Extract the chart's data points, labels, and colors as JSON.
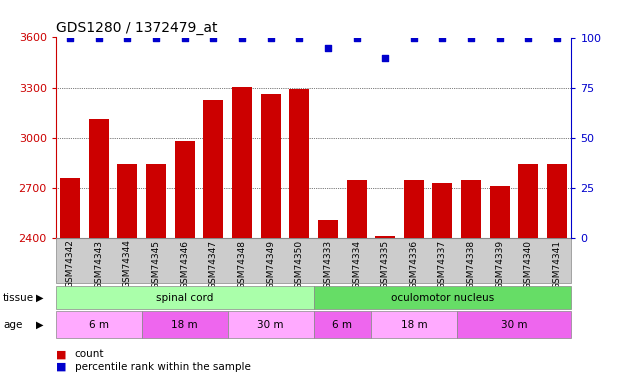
{
  "title": "GDS1280 / 1372479_at",
  "samples": [
    "GSM74342",
    "GSM74343",
    "GSM74344",
    "GSM74345",
    "GSM74346",
    "GSM74347",
    "GSM74348",
    "GSM74349",
    "GSM74350",
    "GSM74333",
    "GSM74334",
    "GSM74335",
    "GSM74336",
    "GSM74337",
    "GSM74338",
    "GSM74339",
    "GSM74340",
    "GSM74341"
  ],
  "counts": [
    2760,
    3110,
    2845,
    2845,
    2980,
    3225,
    3305,
    3265,
    3290,
    2510,
    2745,
    2415,
    2750,
    2730,
    2745,
    2710,
    2845,
    2845
  ],
  "percentiles": [
    100,
    100,
    100,
    100,
    100,
    100,
    100,
    100,
    100,
    95,
    100,
    90,
    100,
    100,
    100,
    100,
    100,
    100
  ],
  "ylim_left": [
    2400,
    3600
  ],
  "ylim_right": [
    0,
    100
  ],
  "yticks_left": [
    2400,
    2700,
    3000,
    3300,
    3600
  ],
  "yticks_right": [
    0,
    25,
    50,
    75,
    100
  ],
  "bar_color": "#cc0000",
  "dot_color": "#0000cc",
  "background_color": "#ffffff",
  "tissue_spinal_color": "#aaffaa",
  "tissue_oculo_color": "#66dd66",
  "age_light_color": "#ffaaff",
  "age_dark_color": "#ee66ee",
  "tissue_row": [
    {
      "label": "spinal cord",
      "start": 0,
      "end": 9
    },
    {
      "label": "oculomotor nucleus",
      "start": 9,
      "end": 18
    }
  ],
  "age_row": [
    {
      "label": "6 m",
      "start": 0,
      "end": 3,
      "dark": false
    },
    {
      "label": "18 m",
      "start": 3,
      "end": 6,
      "dark": true
    },
    {
      "label": "30 m",
      "start": 6,
      "end": 9,
      "dark": false
    },
    {
      "label": "6 m",
      "start": 9,
      "end": 11,
      "dark": true
    },
    {
      "label": "18 m",
      "start": 11,
      "end": 14,
      "dark": false
    },
    {
      "label": "30 m",
      "start": 14,
      "end": 18,
      "dark": true
    }
  ],
  "tick_color_left": "#cc0000",
  "tick_color_right": "#0000cc",
  "grid_color": "#000000",
  "xticklabel_bg": "#cccccc",
  "title_fontsize": 10,
  "bar_fontsize": 6.5,
  "label_fontsize": 7.5
}
